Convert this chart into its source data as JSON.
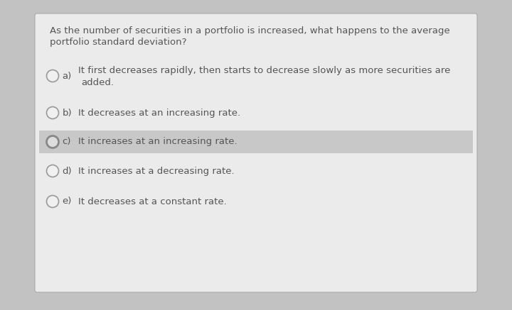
{
  "background_color": "#c2c2c2",
  "card_color": "#ebebeb",
  "highlight_color": "#c8c8c8",
  "question_line1": "As the number of securities in a portfolio is increased, what happens to the average",
  "question_line2": "portfolio standard deviation?",
  "options": [
    {
      "label": "a)",
      "text_line1": "It first decreases rapidly, then starts to decrease slowly as more securities are",
      "text_line2": "added.",
      "highlighted": false,
      "selected": false,
      "two_lines": true
    },
    {
      "label": "b)",
      "text_line1": "It decreases at an increasing rate.",
      "text_line2": "",
      "highlighted": false,
      "selected": false,
      "two_lines": false
    },
    {
      "label": "c)",
      "text_line1": "It increases at an increasing rate.",
      "text_line2": "",
      "highlighted": true,
      "selected": true,
      "two_lines": false
    },
    {
      "label": "d)",
      "text_line1": "It increases at a decreasing rate.",
      "text_line2": "",
      "highlighted": false,
      "selected": false,
      "two_lines": false
    },
    {
      "label": "e)",
      "text_line1": "It decreases at a constant rate.",
      "text_line2": "",
      "highlighted": false,
      "selected": false,
      "two_lines": false
    }
  ],
  "question_fontsize": 9.5,
  "option_fontsize": 9.5,
  "text_color": "#555555",
  "circle_color_selected": "#dddddd",
  "circle_edge_selected": "#888888",
  "circle_color_normal": "#f0f0f0",
  "circle_edge_normal": "#999999"
}
